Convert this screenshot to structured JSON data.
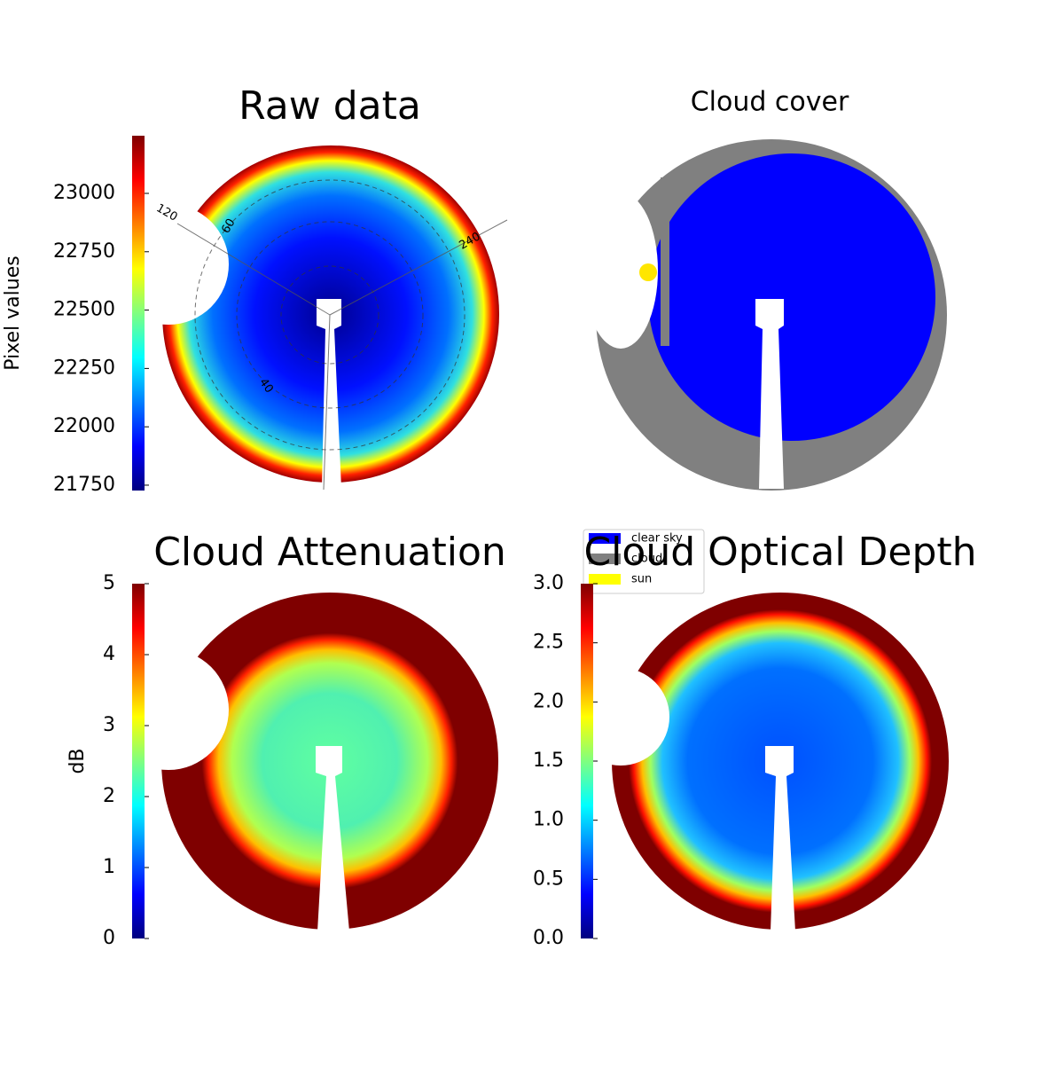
{
  "chart_data": [
    {
      "type": "image",
      "title": "Raw data",
      "colormap": "jet",
      "colorbar": {
        "label": "Pixel values",
        "lim": [
          21727,
          23247
        ],
        "ticks": [
          21750,
          22000,
          22250,
          22500,
          22750,
          23000
        ]
      },
      "annotations": [
        "120",
        "60",
        "240",
        "40"
      ]
    },
    {
      "type": "image",
      "title": "Cloud cover",
      "legend": [
        {
          "name": "clear sky",
          "color": "#0000ff"
        },
        {
          "name": "cloud",
          "color": "#808080"
        },
        {
          "name": "sun",
          "color": "#ffff00"
        }
      ]
    },
    {
      "type": "image",
      "title": "Cloud Attenuation",
      "colormap": "jet",
      "colorbar": {
        "label": "dB",
        "lim": [
          0,
          5
        ],
        "ticks": [
          0,
          1,
          2,
          3,
          4,
          5
        ]
      }
    },
    {
      "type": "image",
      "title": "Cloud Optical Depth",
      "colormap": "jet",
      "colorbar": {
        "lim": [
          0,
          3
        ],
        "ticks": [
          {
            "value": 0,
            "label": "0.0"
          },
          0.5,
          {
            "value": 1,
            "label": "1.0"
          },
          1.5,
          {
            "value": 2,
            "label": "2.0"
          },
          2.5,
          {
            "value": 3,
            "label": "3.0"
          }
        ]
      }
    }
  ]
}
